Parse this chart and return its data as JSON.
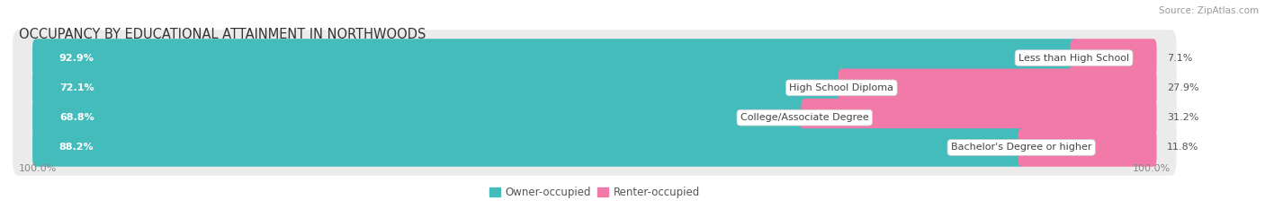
{
  "title": "OCCUPANCY BY EDUCATIONAL ATTAINMENT IN NORTHWOODS",
  "source": "Source: ZipAtlas.com",
  "categories": [
    "Less than High School",
    "High School Diploma",
    "College/Associate Degree",
    "Bachelor's Degree or higher"
  ],
  "owner_values": [
    92.9,
    72.1,
    68.8,
    88.2
  ],
  "renter_values": [
    7.1,
    27.9,
    31.2,
    11.8
  ],
  "owner_color": "#45BCBC",
  "renter_color": "#F27AA8",
  "owner_label": "Owner-occupied",
  "renter_label": "Renter-occupied",
  "left_axis_label": "100.0%",
  "right_axis_label": "100.0%",
  "title_fontsize": 10.5,
  "source_fontsize": 7.5,
  "bar_label_fontsize": 8,
  "category_fontsize": 8,
  "legend_fontsize": 8.5,
  "axis_label_fontsize": 8
}
